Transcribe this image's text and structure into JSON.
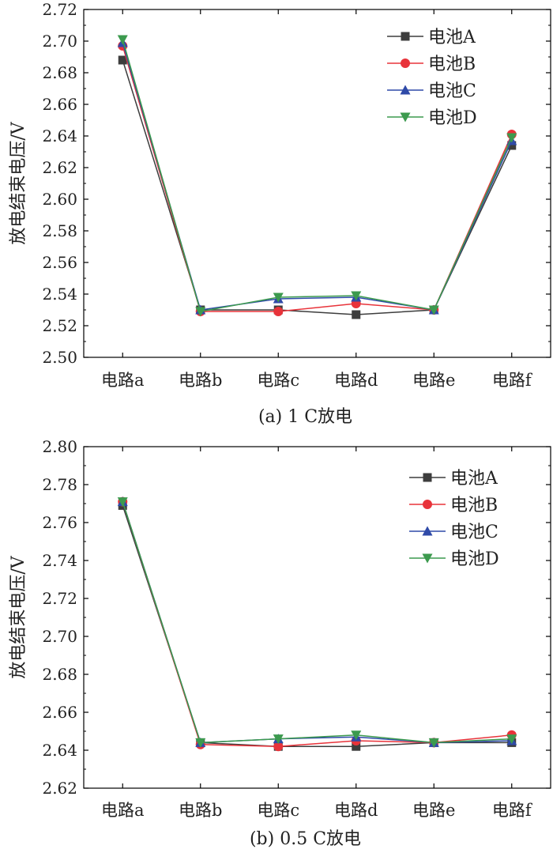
{
  "chart_data": [
    {
      "type": "line",
      "caption": "(a) 1 C放电",
      "ylabel": "放电结束电压/V",
      "categories": [
        "电路a",
        "电路b",
        "电路c",
        "电路d",
        "电路e",
        "电路f"
      ],
      "ylim": [
        2.5,
        2.72
      ],
      "yticks": [
        "2.50",
        "2.52",
        "2.54",
        "2.56",
        "2.58",
        "2.60",
        "2.62",
        "2.64",
        "2.66",
        "2.68",
        "2.70",
        "2.72"
      ],
      "series": [
        {
          "name": "电池A",
          "color": "#3d3d3d",
          "marker": "square",
          "values": [
            2.688,
            2.53,
            2.53,
            2.527,
            2.53,
            2.634
          ]
        },
        {
          "name": "电池B",
          "color": "#e8333a",
          "marker": "circle",
          "values": [
            2.697,
            2.529,
            2.529,
            2.534,
            2.53,
            2.641
          ]
        },
        {
          "name": "电池C",
          "color": "#2f4aa8",
          "marker": "triangle-up",
          "values": [
            2.699,
            2.53,
            2.537,
            2.538,
            2.53,
            2.637
          ]
        },
        {
          "name": "电池D",
          "color": "#3c9a4e",
          "marker": "triangle-down",
          "values": [
            2.701,
            2.529,
            2.538,
            2.539,
            2.53,
            2.639
          ]
        }
      ],
      "legend": "top-right"
    },
    {
      "type": "line",
      "caption": "(b) 0.5 C放电",
      "ylabel": "放电结束电压/V",
      "categories": [
        "电路a",
        "电路b",
        "电路c",
        "电路d",
        "电路e",
        "电路f"
      ],
      "ylim": [
        2.62,
        2.8
      ],
      "yticks": [
        "2.62",
        "2.64",
        "2.66",
        "2.68",
        "2.70",
        "2.72",
        "2.74",
        "2.76",
        "2.78",
        "2.80"
      ],
      "series": [
        {
          "name": "电池A",
          "color": "#3d3d3d",
          "marker": "square",
          "values": [
            2.769,
            2.644,
            2.642,
            2.642,
            2.644,
            2.644
          ]
        },
        {
          "name": "电池B",
          "color": "#e8333a",
          "marker": "circle",
          "values": [
            2.771,
            2.643,
            2.642,
            2.645,
            2.644,
            2.648
          ]
        },
        {
          "name": "电池C",
          "color": "#2f4aa8",
          "marker": "triangle-up",
          "values": [
            2.771,
            2.644,
            2.646,
            2.647,
            2.644,
            2.645
          ]
        },
        {
          "name": "电池D",
          "color": "#3c9a4e",
          "marker": "triangle-down",
          "values": [
            2.771,
            2.644,
            2.646,
            2.648,
            2.644,
            2.646
          ]
        }
      ],
      "legend": "top-right"
    }
  ]
}
